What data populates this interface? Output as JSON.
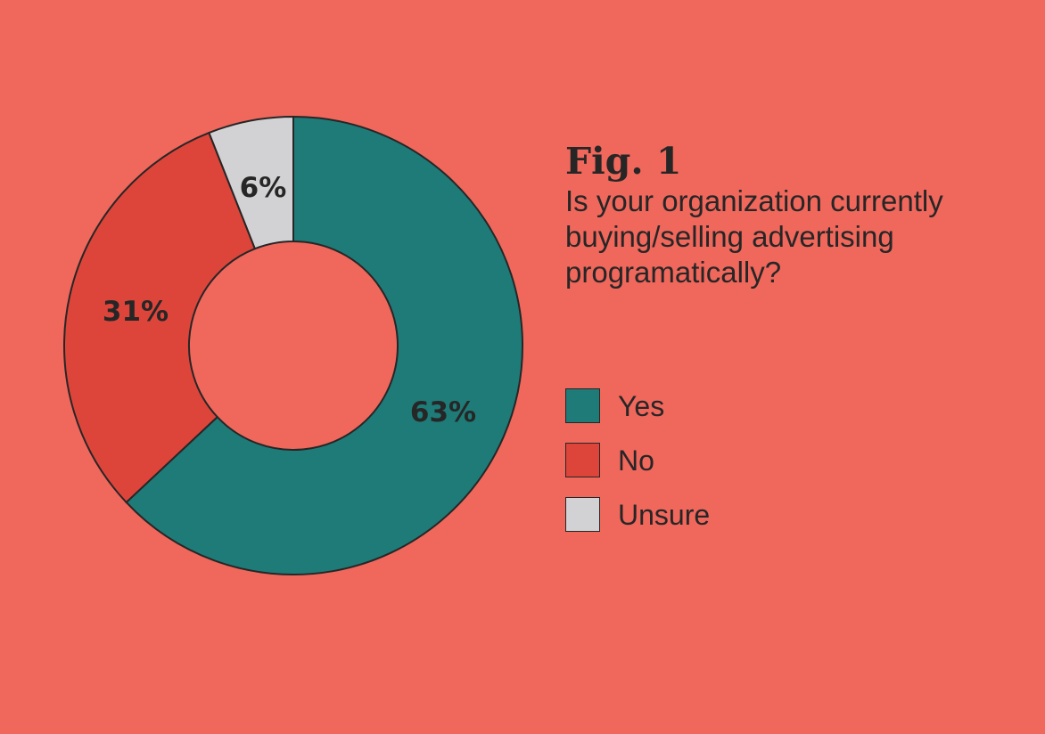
{
  "figure": {
    "label": "Fig. 1",
    "question": "Is your organization currently buying/selling advertising programatically?"
  },
  "chart_data": {
    "type": "pie",
    "variant": "donut",
    "title": "Is your organization currently buying/selling advertising programatically?",
    "slices": [
      {
        "label": "Yes",
        "value": 63,
        "display": "63%",
        "color": "#1e7b78"
      },
      {
        "label": "No",
        "value": 31,
        "display": "31%",
        "color": "#dd453b"
      },
      {
        "label": "Unsure",
        "value": 6,
        "display": "6%",
        "color": "#d2d2d4"
      }
    ],
    "legend": {
      "placement": "right",
      "entries": [
        "Yes",
        "No",
        "Unsure"
      ]
    },
    "colors": {
      "background": "#f0675c",
      "outline": "#262626",
      "text": "#262626"
    }
  }
}
